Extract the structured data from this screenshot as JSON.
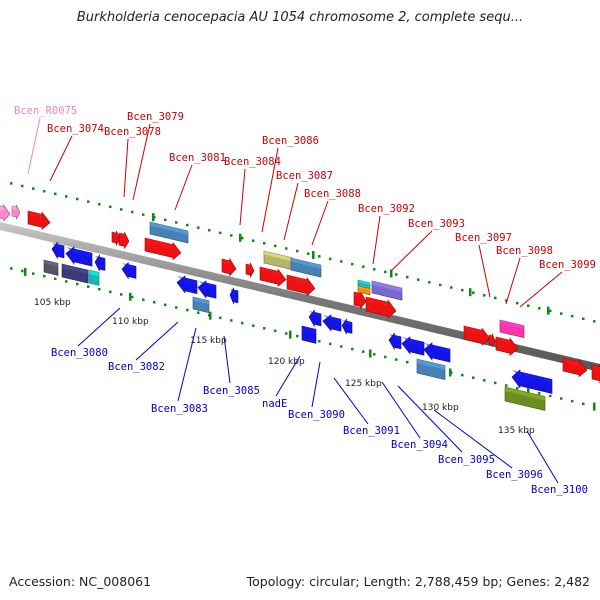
{
  "title": "Burkholderia cenocepacia AU 1054 chromosome 2, complete sequ...",
  "footer": {
    "accession": "Accession: NC_008061",
    "topology": "Topology: circular; Length: 2,788,459 bp; Genes: 2,482"
  },
  "colors": {
    "forward_label": "#cc0000",
    "reverse_label": "#0000cc",
    "rna_label": "#ee88bb",
    "backbone": "#8a8a8a",
    "dots": "#118811"
  },
  "ticks": [
    {
      "label": "105 kbp"
    },
    {
      "label": "110 kbp"
    },
    {
      "label": "115 kbp"
    },
    {
      "label": "120 kbp"
    },
    {
      "label": "125 kbp"
    },
    {
      "label": "130 kbp"
    },
    {
      "label": "135 kbp"
    }
  ],
  "genes_top": [
    {
      "name": "Bcen_R0075",
      "strand": "rna"
    },
    {
      "name": "Bcen_3074",
      "strand": "forward"
    },
    {
      "name": "Bcen_3078",
      "strand": "forward"
    },
    {
      "name": "Bcen_3079",
      "strand": "forward"
    },
    {
      "name": "Bcen_3081",
      "strand": "forward"
    },
    {
      "name": "Bcen_3084",
      "strand": "forward"
    },
    {
      "name": "Bcen_3086",
      "strand": "forward"
    },
    {
      "name": "Bcen_3087",
      "strand": "forward"
    },
    {
      "name": "Bcen_3088",
      "strand": "forward"
    },
    {
      "name": "Bcen_3092",
      "strand": "forward"
    },
    {
      "name": "Bcen_3093",
      "strand": "forward"
    },
    {
      "name": "Bcen_3097",
      "strand": "forward"
    },
    {
      "name": "Bcen_3098",
      "strand": "forward"
    },
    {
      "name": "Bcen_3099",
      "strand": "forward"
    }
  ],
  "genes_bottom": [
    {
      "name": "Bcen_3080",
      "strand": "reverse"
    },
    {
      "name": "Bcen_3082",
      "strand": "reverse"
    },
    {
      "name": "Bcen_3083",
      "strand": "reverse"
    },
    {
      "name": "Bcen_3085",
      "strand": "reverse"
    },
    {
      "name": "nadE",
      "strand": "reverse"
    },
    {
      "name": "Bcen_3090",
      "strand": "reverse"
    },
    {
      "name": "Bcen_3091",
      "strand": "reverse"
    },
    {
      "name": "Bcen_3094",
      "strand": "reverse"
    },
    {
      "name": "Bcen_3095",
      "strand": "reverse"
    },
    {
      "name": "Bcen_3096",
      "strand": "reverse"
    },
    {
      "name": "Bcen_3100",
      "strand": "reverse"
    }
  ]
}
